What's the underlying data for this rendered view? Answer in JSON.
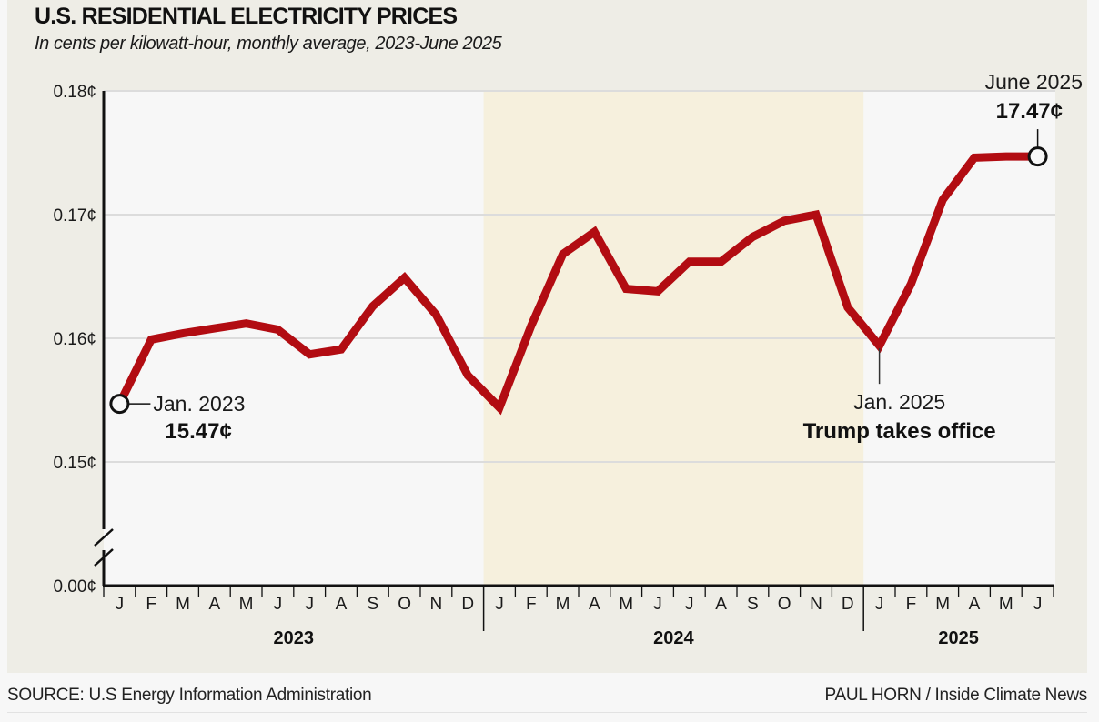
{
  "header": {
    "title": "U.S. RESIDENTIAL ELECTRICITY PRICES",
    "subtitle": "In cents per kilowatt-hour, monthly average, 2023-June 2025"
  },
  "footer": {
    "source": "SOURCE: U.S Energy Information Administration",
    "credit": "PAUL HORN / Inside Climate News"
  },
  "colors": {
    "line": "#b20c12",
    "panel_background": "#eeede6",
    "plot_background": "#f7f7f7",
    "highlight_band": "#f6f0dd",
    "gridline": "#dcdcdc",
    "axis": "#111111"
  },
  "chart_data": {
    "type": "line",
    "title": "U.S. RESIDENTIAL ELECTRICITY PRICES",
    "subtitle": "In cents per kilowatt-hour, monthly average, 2023-June 2025",
    "xlabel": "",
    "ylabel": "",
    "y_axis": {
      "ticks": [
        0.0,
        0.15,
        0.16,
        0.17,
        0.18
      ],
      "tick_labels": [
        "0.00¢",
        "0.15¢",
        "0.16¢",
        "0.17¢",
        "0.18¢"
      ],
      "ylim": [
        0.14,
        0.18
      ],
      "broken_axis": true,
      "grid": true
    },
    "x_axis": {
      "month_labels": [
        "J",
        "F",
        "M",
        "A",
        "M",
        "J",
        "J",
        "A",
        "S",
        "O",
        "N",
        "D",
        "J",
        "F",
        "M",
        "A",
        "M",
        "J",
        "J",
        "A",
        "S",
        "O",
        "N",
        "D",
        "J",
        "F",
        "M",
        "A",
        "M",
        "J"
      ],
      "years": [
        {
          "label": "2023",
          "start_index": 0,
          "end_index": 11
        },
        {
          "label": "2024",
          "start_index": 12,
          "end_index": 23
        },
        {
          "label": "2025",
          "start_index": 24,
          "end_index": 29
        }
      ]
    },
    "highlight_band": {
      "label": "2024",
      "start_index": 12,
      "end_index": 23
    },
    "series": [
      {
        "name": "Residential electricity price",
        "x": [
          "2023-01",
          "2023-02",
          "2023-03",
          "2023-04",
          "2023-05",
          "2023-06",
          "2023-07",
          "2023-08",
          "2023-09",
          "2023-10",
          "2023-11",
          "2023-12",
          "2024-01",
          "2024-02",
          "2024-03",
          "2024-04",
          "2024-05",
          "2024-06",
          "2024-07",
          "2024-08",
          "2024-09",
          "2024-10",
          "2024-11",
          "2024-12",
          "2025-01",
          "2025-02",
          "2025-03",
          "2025-04",
          "2025-05",
          "2025-06"
        ],
        "values": [
          0.1547,
          0.1599,
          0.1604,
          0.1608,
          0.1612,
          0.1607,
          0.1587,
          0.1591,
          0.1626,
          0.1649,
          0.1619,
          0.157,
          0.1544,
          0.161,
          0.1668,
          0.1686,
          0.164,
          0.1638,
          0.1662,
          0.1662,
          0.1682,
          0.1695,
          0.17,
          0.1625,
          0.1594,
          0.1644,
          0.1712,
          0.1746,
          0.1747,
          0.1747
        ]
      }
    ],
    "annotations": [
      {
        "index": 0,
        "date_label": "Jan. 2023",
        "value_label": "15.47¢",
        "marker": "open-circle"
      },
      {
        "index": 24,
        "date_label": "Jan. 2025",
        "value_label": "Trump takes office",
        "marker": "leader-line"
      },
      {
        "index": 29,
        "date_label": "June 2025",
        "value_label": "17.47¢",
        "marker": "open-circle"
      }
    ],
    "legend": "none"
  }
}
